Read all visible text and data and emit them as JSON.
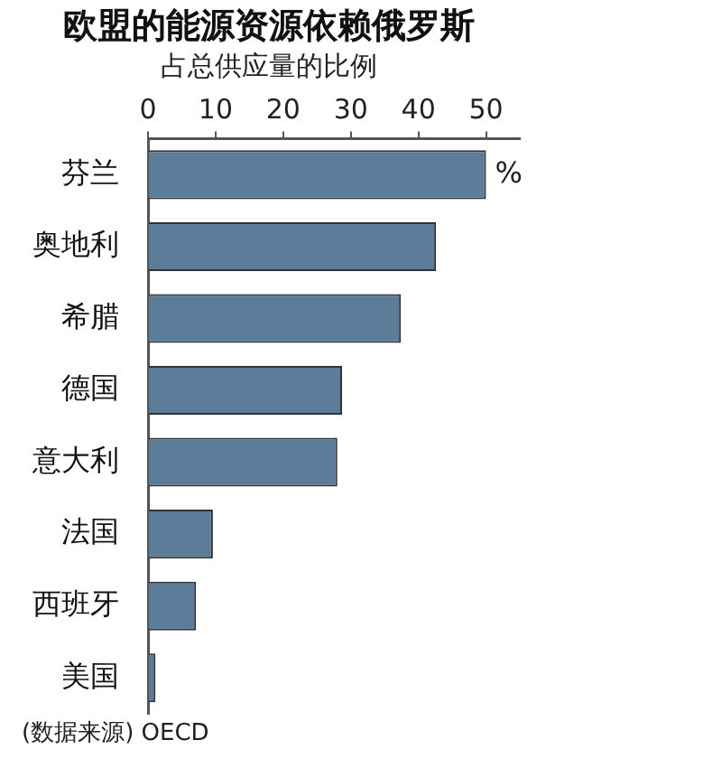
{
  "chart_data": {
    "type": "bar",
    "orientation": "horizontal",
    "title": "欧盟的能源资源依赖俄罗斯",
    "subtitle": "占总供应量的比例",
    "categories": [
      "芬兰",
      "奥地利",
      "希腊",
      "德国",
      "意大利",
      "法国",
      "西班牙",
      "美国"
    ],
    "values": [
      50,
      42.6,
      37.4,
      28.7,
      28,
      9.6,
      7.1,
      1.1
    ],
    "color": "#5b7d99",
    "xlim": [
      0,
      55
    ],
    "xticks": [
      0,
      10,
      20,
      30,
      40,
      50
    ],
    "grid": false,
    "legend": false,
    "annotations": [
      "%",
      "(数据来源) OECD"
    ]
  }
}
